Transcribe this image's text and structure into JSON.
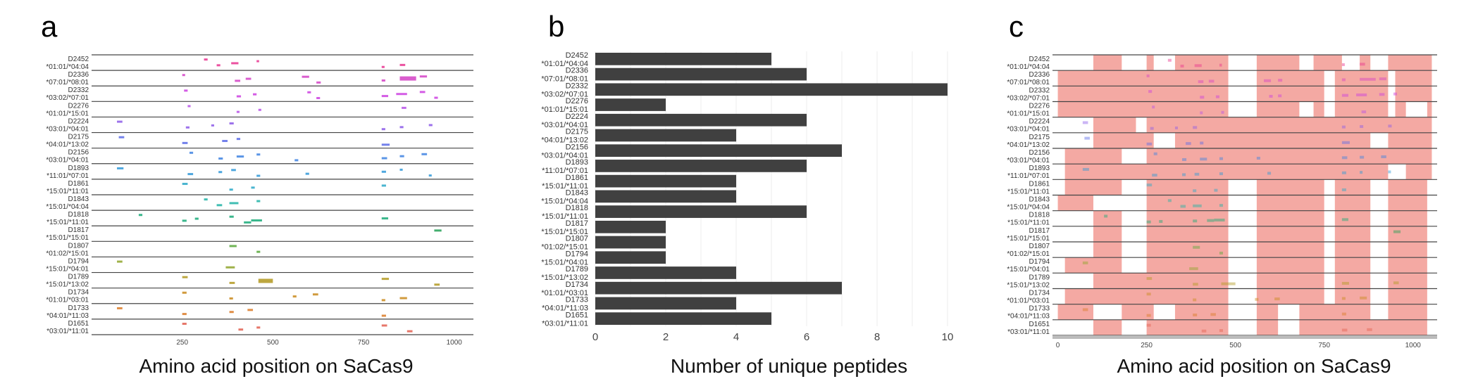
{
  "panels": {
    "a": {
      "letter": "a",
      "caption": "Amino acid position on SaCas9"
    },
    "b": {
      "letter": "b",
      "caption": "Number of unique peptides"
    },
    "c": {
      "letter": "c",
      "caption": "Amino acid position on SaCas9"
    }
  },
  "colors": {
    "bar": "#404040",
    "coverage": "#f4a9a3",
    "separator": "#444444",
    "grid": "#eeeeee",
    "samples": [
      "#e8348f",
      "#d441c5",
      "#cc3fe0",
      "#b750e8",
      "#8c5be8",
      "#5a6be8",
      "#3e82e2",
      "#2f98d8",
      "#2aa8c8",
      "#20b3a6",
      "#18aa78",
      "#22a055",
      "#58a83a",
      "#8ea52a",
      "#b2981e",
      "#c9891c",
      "#da7a26",
      "#e25f50"
    ]
  },
  "chart_data": [
    {
      "type": "scatter",
      "panel": "a",
      "xlabel": "Amino acid position on SaCas9",
      "xlim": [
        0,
        1053
      ],
      "xticks": [
        250,
        500,
        750,
        1000
      ],
      "samples": [
        {
          "id": "D2452",
          "hla": "*01:01/*04:04",
          "peptides": [
            [
              310,
              320
            ],
            [
              345,
              355
            ],
            [
              385,
              405
            ],
            [
              455,
              462
            ],
            [
              800,
              808
            ],
            [
              850,
              865
            ]
          ]
        },
        {
          "id": "D2336",
          "hla": "*07:01/*08:01",
          "peptides": [
            [
              250,
              258
            ],
            [
              395,
              410
            ],
            [
              425,
              440
            ],
            [
              580,
              600
            ],
            [
              620,
              632
            ],
            [
              800,
              810
            ],
            [
              850,
              895
            ],
            [
              905,
              925
            ]
          ]
        },
        {
          "id": "D2332",
          "hla": "*03:02/*07:01",
          "peptides": [
            [
              255,
              265
            ],
            [
              400,
              412
            ],
            [
              445,
              455
            ],
            [
              595,
              605
            ],
            [
              620,
              630
            ],
            [
              800,
              818
            ],
            [
              840,
              870
            ],
            [
              905,
              920
            ],
            [
              945,
              955
            ]
          ]
        },
        {
          "id": "D2276",
          "hla": "*01:01/*15:01",
          "peptides": [
            [
              265,
              273
            ],
            [
              400,
              408
            ],
            [
              460,
              468
            ],
            [
              855,
              868
            ]
          ]
        },
        {
          "id": "D2224",
          "hla": "*03:01/*04:01",
          "peptides": [
            [
              70,
              85
            ],
            [
              260,
              270
            ],
            [
              330,
              338
            ],
            [
              380,
              392
            ],
            [
              800,
              810
            ],
            [
              850,
              860
            ],
            [
              930,
              940
            ]
          ]
        },
        {
          "id": "D2175",
          "hla": "*04:01/*13:02",
          "peptides": [
            [
              75,
              90
            ],
            [
              250,
              265
            ],
            [
              360,
              375
            ],
            [
              400,
              410
            ],
            [
              800,
              822
            ]
          ]
        },
        {
          "id": "D2156",
          "hla": "*03:01/*04:01",
          "peptides": [
            [
              270,
              280
            ],
            [
              350,
              362
            ],
            [
              400,
              420
            ],
            [
              455,
              465
            ],
            [
              560,
              570
            ],
            [
              800,
              815
            ],
            [
              850,
              862
            ],
            [
              910,
              925
            ]
          ]
        },
        {
          "id": "D1893",
          "hla": "*11:01/*07:01",
          "peptides": [
            [
              70,
              88
            ],
            [
              265,
              280
            ],
            [
              350,
              360
            ],
            [
              385,
              398
            ],
            [
              455,
              465
            ],
            [
              590,
              600
            ],
            [
              800,
              812
            ],
            [
              850,
              858
            ],
            [
              930,
              938
            ]
          ]
        },
        {
          "id": "D1861",
          "hla": "*15:01/*11:01",
          "peptides": [
            [
              250,
              265
            ],
            [
              380,
              390
            ],
            [
              440,
              450
            ],
            [
              800,
              812
            ]
          ]
        },
        {
          "id": "D1843",
          "hla": "*15:01/*04:04",
          "peptides": [
            [
              310,
              320
            ],
            [
              345,
              360
            ],
            [
              380,
              405
            ],
            [
              455,
              465
            ]
          ]
        },
        {
          "id": "D1818",
          "hla": "*15:01/*11:01",
          "peptides": [
            [
              130,
              140
            ],
            [
              250,
              262
            ],
            [
              285,
              295
            ],
            [
              380,
              392
            ],
            [
              420,
              440
            ],
            [
              440,
              470
            ],
            [
              800,
              818
            ]
          ]
        },
        {
          "id": "D1817",
          "hla": "*15:01/*15:01",
          "peptides": [
            [
              945,
              965
            ]
          ]
        },
        {
          "id": "D1807",
          "hla": "*01:02/*15:01",
          "peptides": [
            [
              380,
              400
            ],
            [
              455,
              465
            ]
          ]
        },
        {
          "id": "D1794",
          "hla": "*15:01/*04:01",
          "peptides": [
            [
              70,
              85
            ],
            [
              370,
              395
            ]
          ]
        },
        {
          "id": "D1789",
          "hla": "*15:01/*13:02",
          "peptides": [
            [
              250,
              265
            ],
            [
              380,
              395
            ],
            [
              460,
              500
            ],
            [
              800,
              820
            ],
            [
              945,
              960
            ]
          ]
        },
        {
          "id": "D1734",
          "hla": "*01:01/*03:01",
          "peptides": [
            [
              250,
              262
            ],
            [
              380,
              390
            ],
            [
              555,
              565
            ],
            [
              610,
              625
            ],
            [
              800,
              810
            ],
            [
              850,
              870
            ]
          ]
        },
        {
          "id": "D1733",
          "hla": "*04:01/*11:03",
          "peptides": [
            [
              70,
              85
            ],
            [
              250,
              262
            ],
            [
              380,
              392
            ],
            [
              430,
              445
            ],
            [
              800,
              812
            ]
          ]
        },
        {
          "id": "D1651",
          "hla": "*03:01/*11:01",
          "peptides": [
            [
              250,
              262
            ],
            [
              405,
              418
            ],
            [
              455,
              465
            ],
            [
              800,
              815
            ],
            [
              870,
              885
            ]
          ]
        }
      ]
    },
    {
      "type": "bar",
      "panel": "b",
      "orientation": "horizontal",
      "xlabel": "Number of unique peptides",
      "xlim": [
        0,
        10.6
      ],
      "xticks": [
        0,
        2,
        4,
        6,
        8,
        10
      ],
      "categories": [
        "D2452 *01:01/*04:04",
        "D2336 *07:01/*08:01",
        "D2332 *03:02/*07:01",
        "D2276 *01:01/*15:01",
        "D2224 *03:01/*04:01",
        "D2175 *04:01/*13:02",
        "D2156 *03:01/*04:01",
        "D1893 *11:01/*07:01",
        "D1861 *15:01/*11:01",
        "D1843 *15:01/*04:04",
        "D1818 *15:01/*11:01",
        "D1817 *15:01/*15:01",
        "D1807 *01:02/*15:01",
        "D1794 *15:01/*04:01",
        "D1789 *15:01/*13:02",
        "D1734 *01:01/*03:01",
        "D1733 *04:01/*11:03",
        "D1651 *03:01/*11:01"
      ],
      "values": [
        5,
        6,
        10,
        2,
        6,
        4,
        7,
        6,
        4,
        4,
        6,
        2,
        2,
        2,
        4,
        7,
        4,
        5
      ]
    },
    {
      "type": "heatmap",
      "panel": "c",
      "xlabel": "Amino acid position on SaCas9",
      "xlim": [
        -15,
        1068
      ],
      "xticks": [
        0,
        250,
        500,
        750,
        1000
      ],
      "samples": [
        {
          "id": "D2452",
          "hla": "*01:01/*04:04",
          "uncovered": [
            [
              0,
              100
            ],
            [
              180,
              250
            ],
            [
              270,
              330
            ],
            [
              480,
              560
            ],
            [
              680,
              720
            ],
            [
              800,
              850
            ],
            [
              880,
              930
            ]
          ]
        },
        {
          "id": "D2336",
          "hla": "*07:01/*08:01",
          "uncovered": [
            [
              480,
              560
            ],
            [
              750,
              780
            ],
            [
              930,
              950
            ]
          ]
        },
        {
          "id": "D2332",
          "hla": "*03:02/*07:01",
          "uncovered": [
            [
              480,
              560
            ],
            [
              750,
              780
            ],
            [
              930,
              950
            ]
          ]
        },
        {
          "id": "D2276",
          "hla": "*01:01/*15:01",
          "uncovered": [
            [
              480,
              560
            ],
            [
              680,
              720
            ],
            [
              750,
              780
            ],
            [
              930,
              950
            ],
            [
              980,
              1040
            ]
          ]
        },
        {
          "id": "D2224",
          "hla": "*03:01/*04:01",
          "uncovered": [
            [
              0,
              100
            ],
            [
              220,
              250
            ]
          ]
        },
        {
          "id": "D2175",
          "hla": "*04:01/*13:02",
          "uncovered": [
            [
              0,
              100
            ],
            [
              270,
              330
            ],
            [
              880,
              930
            ]
          ]
        },
        {
          "id": "D2156",
          "hla": "*03:01/*04:01",
          "uncovered": [
            [
              0,
              20
            ],
            [
              180,
              250
            ]
          ]
        },
        {
          "id": "D1893",
          "hla": "*11:01/*07:01",
          "uncovered": [
            [
              0,
              20
            ],
            [
              930,
              980
            ]
          ]
        },
        {
          "id": "D1861",
          "hla": "*15:01/*11:01",
          "uncovered": [
            [
              0,
              20
            ],
            [
              180,
              250
            ],
            [
              480,
              560
            ],
            [
              750,
              780
            ],
            [
              880,
              930
            ],
            [
              1040,
              1068
            ]
          ]
        },
        {
          "id": "D1843",
          "hla": "*15:01/*04:04",
          "uncovered": [
            [
              100,
              250
            ],
            [
              480,
              560
            ],
            [
              750,
              780
            ],
            [
              880,
              930
            ],
            [
              1040,
              1068
            ]
          ]
        },
        {
          "id": "D1818",
          "hla": "*15:01/*11:01",
          "uncovered": [
            [
              0,
              100
            ],
            [
              180,
              250
            ],
            [
              480,
              560
            ],
            [
              750,
              780
            ],
            [
              880,
              930
            ],
            [
              1040,
              1068
            ]
          ]
        },
        {
          "id": "D1817",
          "hla": "*15:01/*15:01",
          "uncovered": [
            [
              0,
              100
            ],
            [
              180,
              250
            ],
            [
              480,
              560
            ],
            [
              750,
              780
            ],
            [
              880,
              930
            ],
            [
              1040,
              1068
            ]
          ]
        },
        {
          "id": "D1807",
          "hla": "*01:02/*15:01",
          "uncovered": [
            [
              0,
              100
            ],
            [
              180,
              250
            ],
            [
              480,
              560
            ],
            [
              750,
              780
            ],
            [
              880,
              930
            ],
            [
              1040,
              1068
            ]
          ]
        },
        {
          "id": "D1794",
          "hla": "*15:01/*04:01",
          "uncovered": [
            [
              0,
              20
            ],
            [
              180,
              250
            ],
            [
              480,
              560
            ],
            [
              750,
              780
            ],
            [
              880,
              930
            ],
            [
              1040,
              1068
            ]
          ]
        },
        {
          "id": "D1789",
          "hla": "*15:01/*13:02",
          "uncovered": [
            [
              0,
              100
            ],
            [
              480,
              560
            ],
            [
              750,
              780
            ],
            [
              880,
              930
            ],
            [
              1040,
              1068
            ]
          ]
        },
        {
          "id": "D1734",
          "hla": "*01:01/*03:01",
          "uncovered": [
            [
              0,
              20
            ],
            [
              480,
              560
            ],
            [
              750,
              780
            ],
            [
              880,
              930
            ],
            [
              1040,
              1068
            ]
          ]
        },
        {
          "id": "D1733",
          "hla": "*04:01/*11:03",
          "uncovered": [
            [
              100,
              180
            ],
            [
              270,
              330
            ],
            [
              480,
              560
            ],
            [
              620,
              680
            ],
            [
              880,
              930
            ],
            [
              1040,
              1068
            ]
          ]
        },
        {
          "id": "D1651",
          "hla": "*03:01/*11:01",
          "uncovered": [
            [
              0,
              100
            ],
            [
              180,
              250
            ],
            [
              480,
              560
            ],
            [
              620,
              680
            ],
            [
              1040,
              1068
            ]
          ]
        }
      ]
    }
  ]
}
